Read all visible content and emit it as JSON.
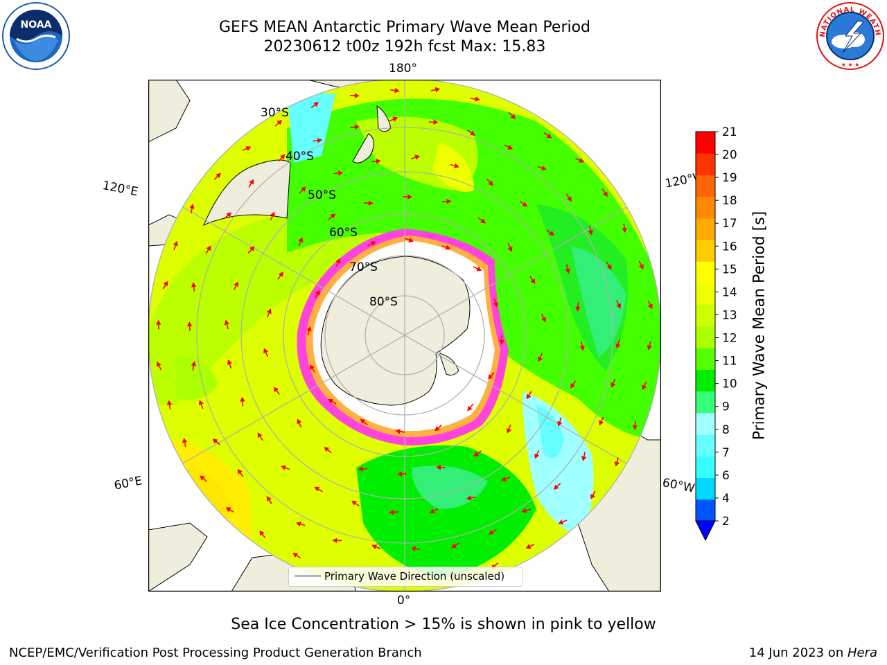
{
  "header": {
    "title_line_1": "GEFS MEAN Antarctic Primary Wave Mean Period",
    "title_line_2": "20230612 t00z 192h fcst   Max: 15.83"
  },
  "logos": {
    "left": {
      "icon": "noaa-logo",
      "text": "NOAA"
    },
    "right": {
      "icon": "nws-logo",
      "text": "NATIONAL WEATHER SERVICE"
    }
  },
  "map": {
    "projection": "south-polar-stereographic",
    "longitude_labels": {
      "top": "180°",
      "upper_left": "120°E",
      "upper_right": "120°W",
      "lower_left": "60°E",
      "lower_right": "60°W",
      "bottom": "0°"
    },
    "latitude_labels": [
      "30°S",
      "40°S",
      "50°S",
      "60°S",
      "70°S",
      "80°S"
    ],
    "arrow_color": "#ff0000"
  },
  "colorbar": {
    "label": "Primary Wave Mean Period [s]",
    "ticks": [
      "2",
      "4",
      "6",
      "7",
      "8",
      "9",
      "10",
      "11",
      "12",
      "13",
      "14",
      "15",
      "16",
      "17",
      "18",
      "19",
      "20",
      "21"
    ],
    "colors": [
      "#0055ff",
      "#00d9ff",
      "#38ffff",
      "#66ffff",
      "#a0ffff",
      "#33ff77",
      "#00ee00",
      "#55ff00",
      "#aaff00",
      "#ccff00",
      "#eeff00",
      "#ffff00",
      "#ffcc00",
      "#ffaa00",
      "#ff8800",
      "#ff6600",
      "#ff3300",
      "#ff0000"
    ],
    "extend_min_color": "#0000ff"
  },
  "legend": {
    "label": "Primary Wave Direction (unscaled)"
  },
  "subtitle": "Sea Ice Concentration > 15% is shown in pink to yellow",
  "footer": {
    "left": "NCEP/EMC/Verification Post Processing Product Generation Branch",
    "right_date": "14 Jun 2023 on ",
    "right_host": "Hera"
  }
}
